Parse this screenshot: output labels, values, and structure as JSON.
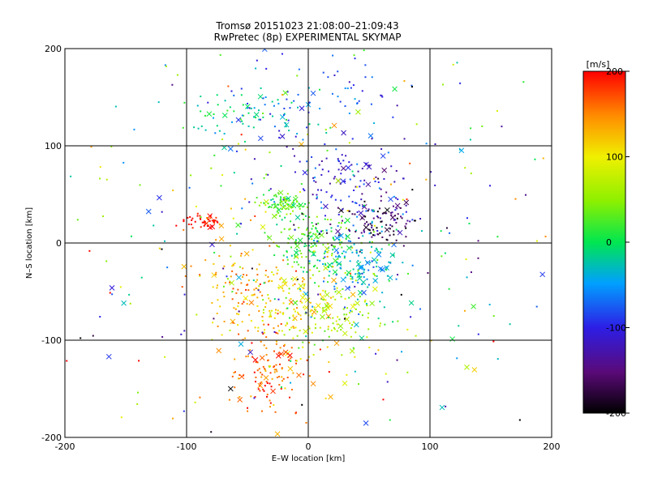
{
  "chart_data": {
    "type": "scatter",
    "title": "Tromsø 20151023 21:08:00–21:09:43",
    "subtitle": "RwPretec (8p) EXPERIMENTAL SKYMAP",
    "xlabel": "E–W location [km]",
    "ylabel": "N–S location [km]",
    "xlim": [
      -200,
      200
    ],
    "ylim": [
      -200,
      200
    ],
    "xticks": [
      "-200",
      "-100",
      "0",
      "100",
      "200"
    ],
    "yticks": [
      "-200",
      "-100",
      "0",
      "100",
      "200"
    ],
    "grid": true,
    "colorbar": {
      "label": "[m/s]",
      "range": [
        -200,
        200
      ],
      "ticks": [
        "-200",
        "-100",
        "0",
        "100",
        "200"
      ],
      "colormap": "rainbow (black-purple-blue-cyan-green-yellow-red)"
    },
    "markers": [
      "small dot",
      "cross (x)"
    ],
    "clusters": [
      {
        "x": 5,
        "y": 0,
        "sx": 18,
        "sy": 16,
        "v": 20,
        "n": 160
      },
      {
        "x": 55,
        "y": 20,
        "sx": 18,
        "sy": 12,
        "v": -170,
        "n": 110
      },
      {
        "x": 40,
        "y": -20,
        "sx": 22,
        "sy": 22,
        "v": -40,
        "n": 150
      },
      {
        "x": -20,
        "y": 40,
        "sx": 10,
        "sy": 5,
        "v": 30,
        "n": 90
      },
      {
        "x": 30,
        "y": 60,
        "sx": 30,
        "sy": 22,
        "v": -110,
        "n": 100
      },
      {
        "x": -85,
        "y": 22,
        "sx": 8,
        "sy": 4,
        "v": 200,
        "n": 45
      },
      {
        "x": -20,
        "y": -60,
        "sx": 22,
        "sy": 22,
        "v": 110,
        "n": 140
      },
      {
        "x": -35,
        "y": -130,
        "sx": 18,
        "sy": 25,
        "v": 160,
        "n": 130
      },
      {
        "x": -55,
        "y": -40,
        "sx": 18,
        "sy": 30,
        "v": 140,
        "n": 80
      },
      {
        "x": 20,
        "y": -75,
        "sx": 25,
        "sy": 25,
        "v": 70,
        "n": 120
      },
      {
        "x": -50,
        "y": 130,
        "sx": 25,
        "sy": 12,
        "v": -10,
        "n": 60
      },
      {
        "x": 10,
        "y": 140,
        "sx": 30,
        "sy": 30,
        "v": -80,
        "n": 80
      },
      {
        "x": 0,
        "y": 0,
        "sx": 110,
        "sy": 110,
        "v": 0,
        "n": 360
      }
    ]
  },
  "colors": {
    "grid": "#000000",
    "background": "#ffffff"
  }
}
